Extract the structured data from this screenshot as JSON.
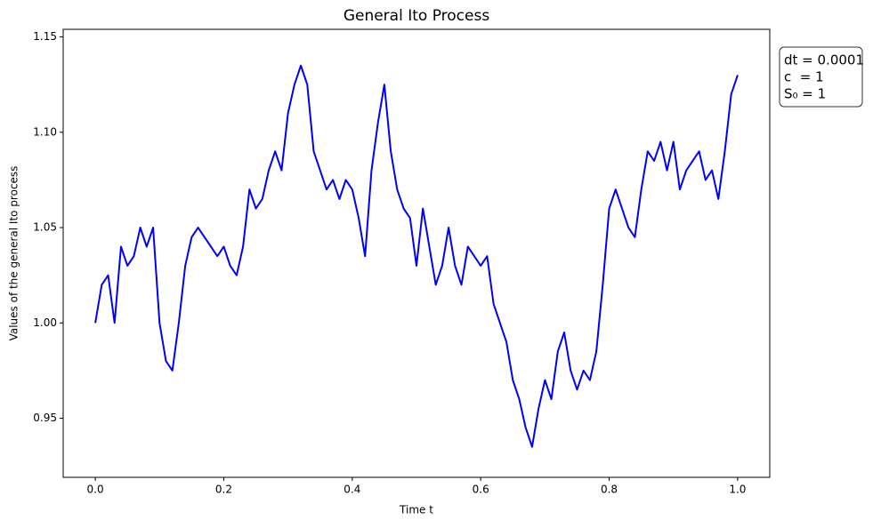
{
  "chart_data": {
    "type": "line",
    "title": "General Ito Process",
    "xlabel": "Time t",
    "ylabel": "Values of the general Ito process",
    "annotation": [
      "dt = 0.0001",
      "c  = 1",
      "S₀ = 1"
    ],
    "x": [
      0,
      0.01,
      0.02,
      0.03,
      0.04,
      0.05,
      0.06,
      0.07,
      0.08,
      0.09,
      0.1,
      0.11,
      0.12,
      0.13,
      0.14,
      0.15,
      0.16,
      0.17,
      0.18,
      0.19,
      0.2,
      0.21,
      0.22,
      0.23,
      0.24,
      0.25,
      0.26,
      0.27,
      0.28,
      0.29,
      0.3,
      0.31,
      0.32,
      0.33,
      0.34,
      0.35,
      0.36,
      0.37,
      0.38,
      0.39,
      0.4,
      0.41,
      0.42,
      0.43,
      0.44,
      0.45,
      0.46,
      0.47,
      0.48,
      0.49,
      0.5,
      0.51,
      0.52,
      0.53,
      0.54,
      0.55,
      0.56,
      0.57,
      0.58,
      0.59,
      0.6,
      0.61,
      0.62,
      0.63,
      0.64,
      0.65,
      0.66,
      0.67,
      0.68,
      0.69,
      0.7,
      0.71,
      0.72,
      0.73,
      0.74,
      0.75,
      0.76,
      0.77,
      0.78,
      0.79,
      0.8,
      0.81,
      0.82,
      0.83,
      0.84,
      0.85,
      0.86,
      0.87,
      0.88,
      0.89,
      0.9,
      0.91,
      0.92,
      0.93,
      0.94,
      0.95,
      0.96,
      0.97,
      0.98,
      0.99,
      1.0
    ],
    "series": [
      {
        "name": "General Ito process",
        "color": "#0000ff",
        "values": [
          1.0,
          1.02,
          1.025,
          1.0,
          1.04,
          1.03,
          1.035,
          1.05,
          1.04,
          1.05,
          1.0,
          0.98,
          0.975,
          1.0,
          1.03,
          1.045,
          1.05,
          1.045,
          1.04,
          1.035,
          1.04,
          1.03,
          1.025,
          1.04,
          1.07,
          1.06,
          1.065,
          1.08,
          1.09,
          1.08,
          1.11,
          1.125,
          1.135,
          1.125,
          1.09,
          1.08,
          1.07,
          1.075,
          1.065,
          1.075,
          1.07,
          1.055,
          1.035,
          1.08,
          1.105,
          1.125,
          1.09,
          1.07,
          1.06,
          1.055,
          1.03,
          1.06,
          1.04,
          1.02,
          1.03,
          1.05,
          1.03,
          1.02,
          1.04,
          1.035,
          1.03,
          1.035,
          1.01,
          1.0,
          0.99,
          0.97,
          0.96,
          0.945,
          0.935,
          0.955,
          0.97,
          0.96,
          0.985,
          0.995,
          0.975,
          0.965,
          0.975,
          0.97,
          0.985,
          1.02,
          1.06,
          1.07,
          1.06,
          1.05,
          1.045,
          1.07,
          1.09,
          1.085,
          1.095,
          1.08,
          1.095,
          1.07,
          1.08,
          1.085,
          1.09,
          1.075,
          1.08,
          1.065,
          1.09,
          1.12,
          1.13
        ]
      }
    ],
    "xlim": [
      -0.05,
      1.05
    ],
    "ylim": [
      0.919,
      1.154
    ],
    "xticks": [
      {
        "value": 0,
        "label": "0.0"
      },
      0.2,
      0.4,
      0.6,
      0.8,
      {
        "value": 1,
        "label": "1.0"
      }
    ],
    "yticks": [
      0.95,
      {
        "value": 1,
        "label": "1.00"
      },
      1.05,
      {
        "value": 1.1,
        "label": "1.10"
      },
      1.15
    ]
  }
}
